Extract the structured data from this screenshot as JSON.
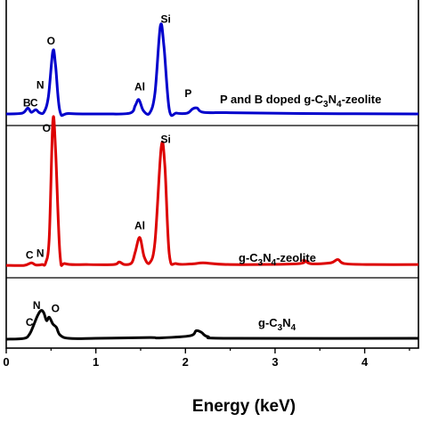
{
  "chart_data": {
    "type": "line",
    "xlabel": "Energy (keV)",
    "ylabel": "",
    "xlim": [
      0,
      4.6
    ],
    "x_ticks": [
      "0",
      "1",
      "2",
      "3",
      "4"
    ],
    "x_tick_values": [
      0,
      1,
      2,
      3,
      4
    ],
    "grid": false,
    "series": [
      {
        "label_parts": [
          "P and B doped g-C",
          "3",
          "N",
          "4",
          "-zeolite"
        ],
        "color": "#0000cc",
        "baseline": 0.24,
        "points": [
          [
            0,
            0
          ],
          [
            0.18,
            0.01
          ],
          [
            0.24,
            0.07
          ],
          [
            0.28,
            0.02
          ],
          [
            0.33,
            0.05
          ],
          [
            0.37,
            0.015
          ],
          [
            0.42,
            0.02
          ],
          [
            0.47,
            0.2
          ],
          [
            0.52,
            0.74
          ],
          [
            0.55,
            0.58
          ],
          [
            0.6,
            0.03
          ],
          [
            0.7,
            0.005
          ],
          [
            1.1,
            0
          ],
          [
            1.38,
            0.01
          ],
          [
            1.44,
            0.1
          ],
          [
            1.48,
            0.17
          ],
          [
            1.53,
            0.04
          ],
          [
            1.6,
            0.01
          ],
          [
            1.66,
            0.25
          ],
          [
            1.72,
            1.04
          ],
          [
            1.76,
            0.8
          ],
          [
            1.82,
            0.05
          ],
          [
            1.9,
            0.01
          ],
          [
            2.02,
            0.01
          ],
          [
            2.08,
            0.06
          ],
          [
            2.13,
            0.07
          ],
          [
            2.2,
            0.02
          ],
          [
            2.5,
            0.015
          ],
          [
            3.3,
            0.005
          ],
          [
            4.6,
            0
          ]
        ],
        "peaks": [
          {
            "text": "B",
            "x": 0.23,
            "y": 0.09
          },
          {
            "text": "C",
            "x": 0.31,
            "y": 0.09
          },
          {
            "text": "N",
            "x": 0.38,
            "y": 0.3
          },
          {
            "text": "O",
            "x": 0.5,
            "y": 0.82
          },
          {
            "text": "Al",
            "x": 1.49,
            "y": 0.28
          },
          {
            "text": "Si",
            "x": 1.78,
            "y": 1.08
          },
          {
            "text": "P",
            "x": 2.03,
            "y": 0.2
          }
        ]
      },
      {
        "label_parts": [
          "g-C",
          "3",
          "N",
          "4",
          "-zeolite"
        ],
        "color": "#dd0000",
        "baseline": 0.0,
        "points": [
          [
            0,
            0.02
          ],
          [
            0.2,
            0.02
          ],
          [
            0.28,
            0.05
          ],
          [
            0.33,
            0.025
          ],
          [
            0.4,
            0.03
          ],
          [
            0.44,
            0.05
          ],
          [
            0.48,
            0.35
          ],
          [
            0.52,
            1.72
          ],
          [
            0.55,
            1.4
          ],
          [
            0.6,
            0.15
          ],
          [
            0.66,
            0.04
          ],
          [
            0.9,
            0.03
          ],
          [
            1.2,
            0.03
          ],
          [
            1.26,
            0.06
          ],
          [
            1.32,
            0.03
          ],
          [
            1.4,
            0.05
          ],
          [
            1.44,
            0.18
          ],
          [
            1.49,
            0.35
          ],
          [
            1.54,
            0.12
          ],
          [
            1.6,
            0.05
          ],
          [
            1.66,
            0.3
          ],
          [
            1.73,
            1.42
          ],
          [
            1.77,
            1.2
          ],
          [
            1.82,
            0.15
          ],
          [
            1.9,
            0.04
          ],
          [
            2.1,
            0.04
          ],
          [
            2.2,
            0.05
          ],
          [
            2.5,
            0.03
          ],
          [
            3.25,
            0.04
          ],
          [
            3.32,
            0.08
          ],
          [
            3.4,
            0.04
          ],
          [
            3.62,
            0.05
          ],
          [
            3.7,
            0.09
          ],
          [
            3.78,
            0.04
          ],
          [
            4.1,
            0.03
          ],
          [
            4.6,
            0.03
          ]
        ],
        "peaks": [
          {
            "text": "C",
            "x": 0.26,
            "y": 0.1
          },
          {
            "text": "N",
            "x": 0.38,
            "y": 0.12
          },
          {
            "text": "O",
            "x": 0.45,
            "y": 1.6
          },
          {
            "text": "Al",
            "x": 1.49,
            "y": 0.45
          },
          {
            "text": "Si",
            "x": 1.78,
            "y": 1.47
          }
        ]
      },
      {
        "label_parts": [
          "g-C",
          "3",
          "N",
          "4"
        ],
        "color": "#000000",
        "baseline": -0.58,
        "points": [
          [
            0,
            0
          ],
          [
            0.2,
            0.01
          ],
          [
            0.26,
            0.06
          ],
          [
            0.3,
            0.15
          ],
          [
            0.35,
            0.28
          ],
          [
            0.39,
            0.34
          ],
          [
            0.42,
            0.31
          ],
          [
            0.45,
            0.22
          ],
          [
            0.48,
            0.26
          ],
          [
            0.52,
            0.18
          ],
          [
            0.56,
            0.14
          ],
          [
            0.6,
            0.05
          ],
          [
            0.7,
            0.01
          ],
          [
            1.0,
            0.01
          ],
          [
            1.6,
            0.02
          ],
          [
            1.7,
            0.015
          ],
          [
            2.05,
            0.04
          ],
          [
            2.12,
            0.1
          ],
          [
            2.18,
            0.08
          ],
          [
            2.25,
            0.03
          ],
          [
            2.5,
            0.01
          ],
          [
            4.6,
            0.01
          ]
        ],
        "peaks": [
          {
            "text": "C",
            "x": 0.26,
            "y": 0.16
          },
          {
            "text": "N",
            "x": 0.34,
            "y": 0.36
          },
          {
            "text": "O",
            "x": 0.55,
            "y": 0.32
          }
        ]
      }
    ]
  }
}
